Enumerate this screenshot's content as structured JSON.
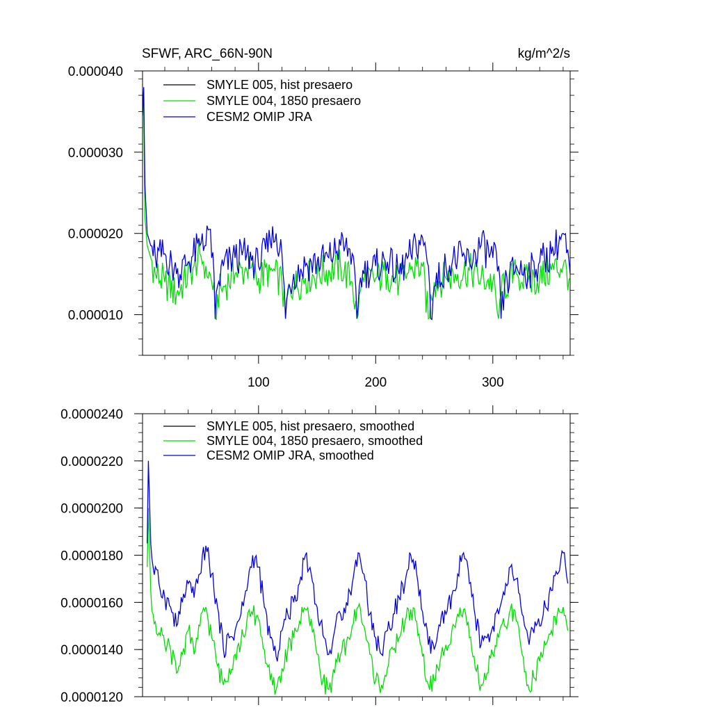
{
  "chart_data": [
    {
      "type": "line",
      "title": "SFWF, ARC_66N-90N",
      "units": "kg/m^2/s",
      "xlim": [
        1,
        366
      ],
      "ylim": [
        5e-06,
        4e-05
      ],
      "xticks": [
        100,
        200,
        300
      ],
      "xtick_labels": [
        "100",
        "200",
        "300"
      ],
      "yticks": [
        1e-05,
        2e-05,
        3e-05,
        4e-05
      ],
      "ytick_labels": [
        "0.000010",
        "0.000020",
        "0.000030",
        "0.000040"
      ],
      "legend_position": "top-left",
      "series": [
        {
          "name": "SMYLE 005, hist presaero",
          "color": "#000000",
          "values": []
        },
        {
          "name": "SMYLE 004, 1850 presaero",
          "color": "#00dd00",
          "x": [
            1,
            2,
            3,
            5,
            8,
            12,
            20,
            30,
            45,
            50,
            55,
            60,
            62,
            63,
            65,
            70,
            80,
            90,
            100,
            110,
            120,
            123,
            125,
            130,
            140,
            150,
            160,
            170,
            180,
            184,
            186,
            190,
            200,
            210,
            220,
            230,
            240,
            245,
            247,
            250,
            260,
            270,
            280,
            290,
            300,
            305,
            307,
            310,
            320,
            330,
            340,
            350,
            360,
            366
          ],
          "values": [
            3.75e-05,
            3.5e-05,
            2.2e-05,
            1.85e-05,
            1.7e-05,
            1.5e-05,
            1.4e-05,
            1.25e-05,
            1.6e-05,
            1.75e-05,
            1.6e-05,
            1.4e-05,
            1.4e-05,
            9.5e-06,
            1.25e-05,
            1.35e-05,
            1.5e-05,
            1.55e-05,
            1.45e-05,
            1.55e-05,
            1.4e-05,
            9.5e-06,
            1.25e-05,
            1.35e-05,
            1.45e-05,
            1.5e-05,
            1.55e-05,
            1.6e-05,
            1.4e-05,
            9.5e-06,
            1.25e-05,
            1.4e-05,
            1.45e-05,
            1.5e-05,
            1.4e-05,
            1.55e-05,
            1.6e-05,
            9.5e-06,
            1.25e-05,
            1.4e-05,
            1.45e-05,
            1.5e-05,
            1.55e-05,
            1.45e-05,
            1.4e-05,
            9.5e-06,
            1.25e-05,
            1.35e-05,
            1.5e-05,
            1.4e-05,
            1.45e-05,
            1.55e-05,
            1.6e-05,
            1.45e-05
          ]
        },
        {
          "name": "CESM2 OMIP JRA",
          "color": "#0000dd",
          "x": [
            1,
            2,
            3,
            5,
            8,
            12,
            20,
            30,
            40,
            50,
            52,
            55,
            58,
            60,
            62,
            63,
            65,
            70,
            80,
            90,
            100,
            110,
            115,
            120,
            123,
            125,
            130,
            140,
            150,
            160,
            170,
            180,
            184,
            186,
            190,
            200,
            210,
            220,
            230,
            240,
            245,
            247,
            250,
            260,
            270,
            280,
            290,
            300,
            305,
            307,
            310,
            320,
            330,
            340,
            350,
            360,
            366
          ],
          "values": [
            3.45e-05,
            3.8e-05,
            2.6e-05,
            2e-05,
            1.85e-05,
            1.7e-05,
            1.75e-05,
            1.5e-05,
            1.65e-05,
            1.85e-05,
            2e-05,
            1.85e-05,
            2.05e-05,
            1.7e-05,
            1.5e-05,
            9.5e-06,
            1.35e-05,
            1.6e-05,
            1.7e-05,
            1.75e-05,
            1.6e-05,
            1.9e-05,
            2e-05,
            1.75e-05,
            9.5e-06,
            1.3e-05,
            1.5e-05,
            1.6e-05,
            1.65e-05,
            1.7e-05,
            1.85e-05,
            1.75e-05,
            9.5e-06,
            1.35e-05,
            1.5e-05,
            1.6e-05,
            1.65e-05,
            1.5e-05,
            1.75e-05,
            1.95e-05,
            1.6e-05,
            9.5e-06,
            1.35e-05,
            1.6e-05,
            1.7e-05,
            1.65e-05,
            1.85e-05,
            1.7e-05,
            1.6e-05,
            9.5e-06,
            1.35e-05,
            1.6e-05,
            1.5e-05,
            1.65e-05,
            1.75e-05,
            2e-05,
            1.5e-05
          ]
        }
      ]
    },
    {
      "type": "line",
      "title": "",
      "units": "",
      "xlim": [
        1,
        366
      ],
      "ylim": [
        1.2e-05,
        2.4e-05
      ],
      "xticks": [
        100,
        200,
        300
      ],
      "xtick_labels": [],
      "yticks": [
        1.2e-05,
        1.4e-05,
        1.6e-05,
        1.8e-05,
        2e-05,
        2.2e-05,
        2.4e-05
      ],
      "ytick_labels": [
        "0.0000120",
        "0.0000140",
        "0.0000160",
        "0.0000180",
        "0.0000200",
        "0.0000220",
        "0.0000240"
      ],
      "legend_position": "top-left",
      "series": [
        {
          "name": "SMYLE 005, hist presaero, smoothed",
          "color": "#000000",
          "values": []
        },
        {
          "name": "SMYLE 004, 1850 presaero, smoothed",
          "color": "#00dd00",
          "x": [
            5,
            6,
            8,
            10,
            15,
            20,
            25,
            30,
            35,
            40,
            45,
            50,
            55,
            60,
            65,
            70,
            75,
            80,
            85,
            90,
            95,
            100,
            105,
            110,
            115,
            120,
            125,
            130,
            135,
            140,
            145,
            150,
            155,
            160,
            165,
            170,
            175,
            180,
            185,
            190,
            195,
            200,
            205,
            210,
            215,
            220,
            225,
            230,
            235,
            240,
            245,
            250,
            255,
            260,
            265,
            270,
            275,
            280,
            285,
            290,
            295,
            300,
            305,
            310,
            315,
            320,
            325,
            330,
            335,
            340,
            345,
            350,
            355,
            360,
            364
          ],
          "values": [
            1.75e-05,
            2e-05,
            1.65e-05,
            1.55e-05,
            1.47e-05,
            1.42e-05,
            1.4e-05,
            1.3e-05,
            1.38e-05,
            1.48e-05,
            1.38e-05,
            1.5e-05,
            1.58e-05,
            1.45e-05,
            1.33e-05,
            1.25e-05,
            1.32e-05,
            1.38e-05,
            1.43e-05,
            1.52e-05,
            1.55e-05,
            1.53e-05,
            1.4e-05,
            1.27e-05,
            1.23e-05,
            1.32e-05,
            1.4e-05,
            1.45e-05,
            1.52e-05,
            1.57e-05,
            1.53e-05,
            1.38e-05,
            1.27e-05,
            1.23e-05,
            1.3e-05,
            1.38e-05,
            1.43e-05,
            1.5e-05,
            1.58e-05,
            1.5e-05,
            1.38e-05,
            1.27e-05,
            1.25e-05,
            1.32e-05,
            1.4e-05,
            1.45e-05,
            1.52e-05,
            1.57e-05,
            1.52e-05,
            1.37e-05,
            1.25e-05,
            1.27e-05,
            1.35e-05,
            1.42e-05,
            1.48e-05,
            1.55e-05,
            1.57e-05,
            1.45e-05,
            1.32e-05,
            1.25e-05,
            1.3e-05,
            1.38e-05,
            1.45e-05,
            1.5e-05,
            1.57e-05,
            1.52e-05,
            1.38e-05,
            1.25e-05,
            1.28e-05,
            1.35e-05,
            1.42e-05,
            1.48e-05,
            1.55e-05,
            1.58e-05,
            1.48e-05
          ]
        },
        {
          "name": "CESM2 OMIP JRA, smoothed",
          "color": "#0000dd",
          "x": [
            5,
            6,
            8,
            10,
            15,
            20,
            25,
            30,
            35,
            40,
            45,
            50,
            55,
            60,
            65,
            70,
            75,
            80,
            85,
            90,
            95,
            100,
            105,
            110,
            115,
            120,
            125,
            130,
            135,
            140,
            145,
            150,
            155,
            160,
            165,
            170,
            175,
            180,
            185,
            190,
            195,
            200,
            205,
            210,
            215,
            220,
            225,
            230,
            235,
            240,
            245,
            250,
            255,
            260,
            265,
            270,
            275,
            280,
            285,
            290,
            295,
            300,
            305,
            310,
            315,
            320,
            325,
            330,
            335,
            340,
            345,
            350,
            355,
            360,
            364
          ],
          "values": [
            1.85e-05,
            2.2e-05,
            1.85e-05,
            1.75e-05,
            1.68e-05,
            1.62e-05,
            1.58e-05,
            1.5e-05,
            1.6e-05,
            1.68e-05,
            1.62e-05,
            1.72e-05,
            1.84e-05,
            1.72e-05,
            1.58e-05,
            1.4e-05,
            1.45e-05,
            1.48e-05,
            1.55e-05,
            1.65e-05,
            1.8e-05,
            1.75e-05,
            1.58e-05,
            1.45e-05,
            1.37e-05,
            1.48e-05,
            1.55e-05,
            1.6e-05,
            1.68e-05,
            1.8e-05,
            1.72e-05,
            1.58e-05,
            1.46e-05,
            1.38e-05,
            1.48e-05,
            1.55e-05,
            1.6e-05,
            1.68e-05,
            1.81e-05,
            1.72e-05,
            1.55e-05,
            1.45e-05,
            1.38e-05,
            1.48e-05,
            1.55e-05,
            1.62e-05,
            1.68e-05,
            1.8e-05,
            1.72e-05,
            1.56e-05,
            1.42e-05,
            1.4e-05,
            1.5e-05,
            1.55e-05,
            1.63e-05,
            1.72e-05,
            1.81e-05,
            1.68e-05,
            1.54e-05,
            1.42e-05,
            1.45e-05,
            1.5e-05,
            1.55e-05,
            1.63e-05,
            1.75e-05,
            1.7e-05,
            1.55e-05,
            1.45e-05,
            1.47e-05,
            1.5e-05,
            1.58e-05,
            1.65e-05,
            1.72e-05,
            1.81e-05,
            1.68e-05
          ]
        }
      ]
    }
  ]
}
